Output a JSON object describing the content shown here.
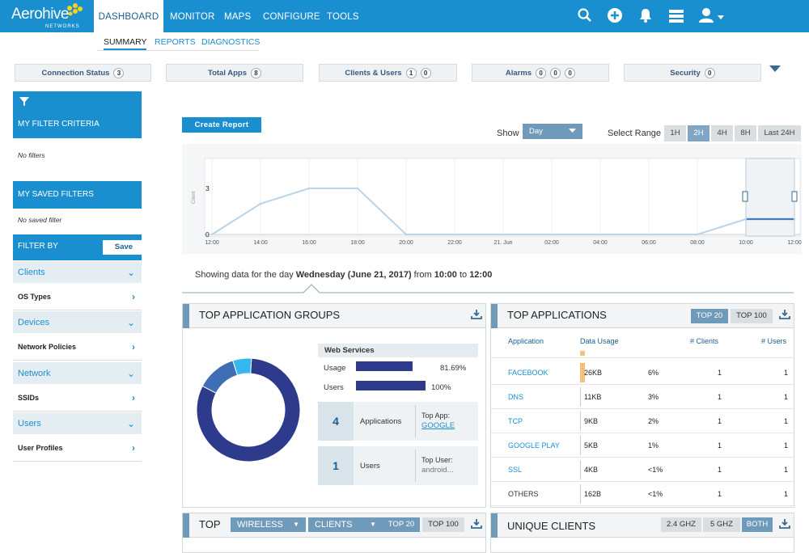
{
  "header": {
    "brand": "Aerohive",
    "brand_sub": "NETWORKS",
    "tabs": [
      "DASHBOARD",
      "MONITOR",
      "MAPS",
      "CONFIGURE",
      "TOOLS"
    ]
  },
  "subnav": [
    "SUMMARY",
    "REPORTS",
    "DIAGNOSTICS"
  ],
  "status": [
    {
      "label": "Connection Status",
      "counts": [
        "3"
      ]
    },
    {
      "label": "Total Apps",
      "counts": [
        "8"
      ]
    },
    {
      "label": "Clients & Users",
      "counts": [
        "1",
        "0"
      ]
    },
    {
      "label": "Alarms",
      "counts": [
        "0",
        "0",
        "0"
      ]
    },
    {
      "label": "Security",
      "counts": [
        "0"
      ]
    }
  ],
  "sidebar": {
    "filter_criteria": "MY FILTER CRITERIA",
    "no_filters": "No filters",
    "saved_filters": "MY SAVED FILTERS",
    "no_saved": "No saved filter",
    "filter_by": "FILTER BY",
    "save": "Save",
    "items": [
      "Clients",
      "OS Types",
      "Devices",
      "Network Policies",
      "Network",
      "SSIDs",
      "Users",
      "User Profiles"
    ]
  },
  "main": {
    "create_report": "Create Report",
    "show": "Show",
    "show_value": "Day",
    "select_range": "Select Range",
    "ranges": [
      "1H",
      "2H",
      "4H",
      "8H",
      "Last 24H"
    ],
    "summary_pre": "Showing data for the day ",
    "summary_day": "Wednesday (June 21, 2017)",
    "summary_from": " from ",
    "summary_start": "10:00",
    "summary_to": " to ",
    "summary_end": "12:00"
  },
  "chart_data": {
    "type": "line",
    "ylabel": "Client",
    "y_ticks": [
      "0",
      "3"
    ],
    "x": [
      "12:00",
      "14:00",
      "16:00",
      "18:00",
      "20:00",
      "22:00",
      "21. Jun",
      "02:00",
      "04:00",
      "06:00",
      "08:00",
      "10:00",
      "12:00"
    ],
    "values": [
      0,
      2,
      3,
      3,
      0,
      0,
      0,
      0,
      0,
      0,
      0,
      1,
      1
    ]
  },
  "app_groups": {
    "title": "TOP APPLICATION GROUPS",
    "group": "Web Services",
    "usage_label": "Usage",
    "usage_value": "81.69%",
    "usage_pct": 81.69,
    "users_label": "Users",
    "users_value": "100%",
    "users_pct": 100,
    "apps_count": "4",
    "apps_label": "Applications",
    "top_app_label": "Top App:",
    "top_app": "GOOGLE",
    "users_count": "1",
    "users_text": "Users",
    "top_user_label": "Top User:",
    "top_user": "android...",
    "donut": [
      {
        "value": 81.69,
        "color": "#2e3a8c"
      },
      {
        "value": 12.5,
        "color": "#3e6fb6"
      },
      {
        "value": 5.81,
        "color": "#35b8ef"
      }
    ]
  },
  "top_apps": {
    "title": "TOP APPLICATIONS",
    "tabs": [
      "TOP 20",
      "TOP 100"
    ],
    "columns": [
      "Application",
      "Data Usage",
      "# Clients",
      "# Users"
    ],
    "rows": [
      {
        "app": "FACEBOOK",
        "data": "26KB",
        "pct": "6%",
        "clients": "1",
        "users": "1"
      },
      {
        "app": "DNS",
        "data": "11KB",
        "pct": "3%",
        "clients": "1",
        "users": "1"
      },
      {
        "app": "TCP",
        "data": "9KB",
        "pct": "2%",
        "clients": "1",
        "users": "1"
      },
      {
        "app": "GOOGLE PLAY",
        "data": "5KB",
        "pct": "1%",
        "clients": "1",
        "users": "1"
      },
      {
        "app": "SSL",
        "data": "4KB",
        "pct": "<1%",
        "clients": "1",
        "users": "1"
      },
      {
        "app": "OTHERS",
        "data": "162B",
        "pct": "<1%",
        "clients": "1",
        "users": "1"
      }
    ]
  },
  "top_panel": {
    "title": "TOP",
    "sel1": "WIRELESS",
    "sel2": "CLIENTS",
    "tabs": [
      "TOP 20",
      "TOP 100"
    ]
  },
  "unique_clients": {
    "title": "UNIQUE CLIENTS",
    "tabs": [
      "2.4 GHZ",
      "5 GHZ",
      "BOTH"
    ]
  }
}
